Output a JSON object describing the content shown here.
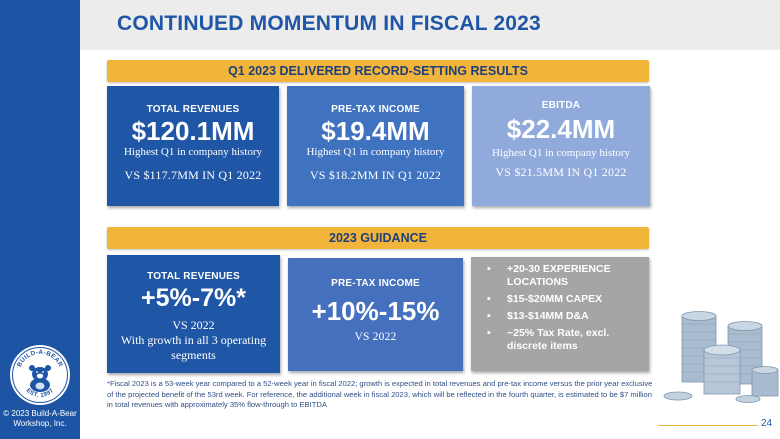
{
  "slide": {
    "title": "CONTINUED MOMENTUM IN FISCAL 2023",
    "page_number": "24"
  },
  "q1": {
    "banner": "Q1 2023 DELIVERED RECORD-SETTING RESULTS",
    "cards": [
      {
        "label": "TOTAL REVENUES",
        "value": "$120.1MM",
        "sub": "Highest Q1 in company history",
        "vs": "VS $117.7MM IN Q1 2022"
      },
      {
        "label": "PRE-TAX INCOME",
        "value": "$19.4MM",
        "sub": "Highest Q1 in company history",
        "vs": "VS $18.2MM IN Q1 2022"
      },
      {
        "label": "EBITDA",
        "value": "$22.4MM",
        "sub": "Highest Q1 in company history",
        "vs": "VS $21.5MM IN Q1 2022"
      }
    ]
  },
  "guidance": {
    "banner": "2023 GUIDANCE",
    "revenues": {
      "label": "TOTAL REVENUES",
      "value": "+5%-7%*",
      "vs": "VS 2022",
      "line1": "With growth in all 3 operating",
      "line2": "segments"
    },
    "pretax": {
      "label": "PRE-TAX INCOME",
      "value": "+10%-15%",
      "vs": "VS 2022"
    },
    "items": [
      "+20-30 EXPERIENCE LOCATIONS",
      "$15-$20MM CAPEX",
      "$13-$14MM D&A",
      "~25% Tax Rate, excl. discrete items"
    ],
    "bullet": "•"
  },
  "footnote": "*Fiscal 2023 is a 53-week year compared to a 52-week year in fiscal 2022; growth is expected in total revenues and pre-tax income versus the prior year exclusive of the projected benefit of the 53rd week. For reference, the additional week in fiscal 2023, which will be reflected in the fourth quarter, is estimated to be $7 million in total revenues with approximately 35% flow-through to EBITDA",
  "branding": {
    "logo_top": "BUILD-A-BEAR",
    "logo_bottom": "EST. 1997",
    "copyright_line1": "© 2023 Build-A-Bear",
    "copyright_line2": "Workshop, Inc."
  },
  "colors": {
    "sidebar": "#1d55a4",
    "accent": "#f2b53c",
    "card_dark": "#1f56a6",
    "card_mid": "#3f73c0",
    "card_light": "#8faadb",
    "card_gray": "#a5a5a7"
  },
  "icons": [
    "build-a-bear-logo",
    "coin-stacks-illustration"
  ]
}
